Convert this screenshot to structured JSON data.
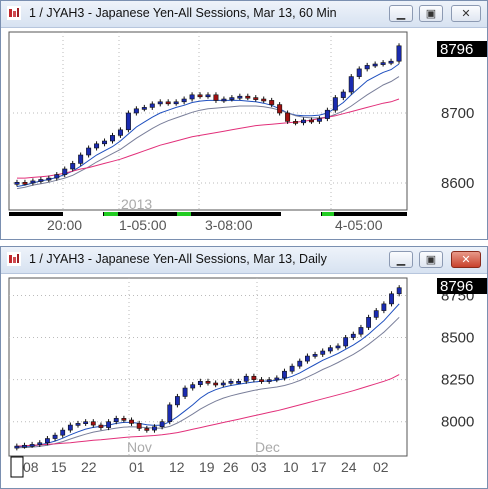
{
  "window1": {
    "title": "1 / JYAH3 - Japanese Yen-All Sessions, Mar 13, 60 Min",
    "price_tag": "8796",
    "y_labels": [
      "8700",
      "8600"
    ],
    "year_label": "2013",
    "x_labels": [
      "20:00",
      "1-05:00",
      "3-08:00",
      "4-05:00"
    ],
    "buttons": {
      "minimize": "minimize-icon",
      "restore": "restore-icon",
      "close": "close-icon"
    }
  },
  "window2": {
    "title": "1 / JYAH3 - Japanese Yen-All Sessions, Mar 13, Daily",
    "price_tag": "8796",
    "y_labels": [
      "8750",
      "8500",
      "8250",
      "8000"
    ],
    "month_labels": [
      "Nov",
      "Dec"
    ],
    "x_labels": [
      "08",
      "15",
      "22",
      "01",
      "12",
      "19",
      "26",
      "03",
      "10",
      "17",
      "24",
      "02"
    ]
  },
  "colors": {
    "up": "#1a2bb0",
    "down": "#a01010",
    "ma_fast": "#1e4fbf",
    "ma_mid": "#7a7f9a",
    "ma_slow": "#e2307a",
    "accent_green": "#22cc22"
  },
  "chart_data": [
    {
      "type": "candlestick",
      "title": "1 / JYAH3 - Japanese Yen-All Sessions, Mar 13, 60 Min",
      "ylim": [
        8570,
        8810
      ],
      "last_price": 8796,
      "close": [
        8601,
        8600,
        8603,
        8605,
        8607,
        8612,
        8620,
        8628,
        8640,
        8650,
        8656,
        8660,
        8668,
        8676,
        8700,
        8706,
        8708,
        8713,
        8716,
        8714,
        8716,
        8720,
        8726,
        8724,
        8726,
        8718,
        8720,
        8722,
        8724,
        8722,
        8720,
        8718,
        8712,
        8700,
        8688,
        8686,
        8690,
        8688,
        8692,
        8704,
        8722,
        8730,
        8752,
        8763,
        8768,
        8770,
        8772,
        8774,
        8796
      ],
      "series": [
        {
          "name": "fast-ma",
          "values": [
            8595,
            8597,
            8600,
            8603,
            8605,
            8608,
            8612,
            8617,
            8624,
            8632,
            8640,
            8646,
            8652,
            8660,
            8670,
            8680,
            8687,
            8694,
            8700,
            8704,
            8708,
            8711,
            8715,
            8717,
            8718,
            8718,
            8718,
            8718,
            8718,
            8717,
            8716,
            8714,
            8711,
            8706,
            8700,
            8697,
            8696,
            8696,
            8697,
            8700,
            8707,
            8715,
            8726,
            8736,
            8746,
            8752,
            8758,
            8762,
            8770
          ]
        },
        {
          "name": "mid-ma",
          "values": [
            8592,
            8594,
            8597,
            8599,
            8601,
            8604,
            8607,
            8611,
            8617,
            8623,
            8630,
            8636,
            8642,
            8648,
            8656,
            8664,
            8671,
            8678,
            8684,
            8689,
            8693,
            8697,
            8701,
            8704,
            8706,
            8707,
            8708,
            8709,
            8710,
            8710,
            8710,
            8709,
            8707,
            8704,
            8700,
            8696,
            8694,
            8693,
            8693,
            8694,
            8698,
            8703,
            8710,
            8718,
            8726,
            8733,
            8740,
            8745,
            8752
          ]
        },
        {
          "name": "slow-ma",
          "values": [
            8607,
            8607,
            8608,
            8609,
            8610,
            8612,
            8614,
            8617,
            8620,
            8622,
            8625,
            8628,
            8631,
            8634,
            8638,
            8642,
            8646,
            8650,
            8654,
            8657,
            8660,
            8663,
            8666,
            8668,
            8670,
            8672,
            8674,
            8676,
            8678,
            8680,
            8682,
            8683,
            8684,
            8685,
            8686,
            8687,
            8688,
            8690,
            8692,
            8694,
            8696,
            8699,
            8702,
            8705,
            8708,
            8711,
            8714,
            8716,
            8720
          ]
        }
      ]
    },
    {
      "type": "candlestick",
      "title": "1 / JYAH3 - Japanese Yen-All Sessions, Mar 13, Daily",
      "ylim": [
        7820,
        8830
      ],
      "last_price": 8796,
      "close": [
        7855,
        7860,
        7865,
        7875,
        7900,
        7920,
        7950,
        7980,
        7990,
        8000,
        7980,
        7965,
        8000,
        8020,
        8010,
        7990,
        7960,
        7950,
        7970,
        8000,
        8100,
        8150,
        8200,
        8220,
        8240,
        8230,
        8220,
        8230,
        8240,
        8240,
        8270,
        8250,
        8240,
        8250,
        8260,
        8300,
        8330,
        8360,
        8390,
        8400,
        8420,
        8440,
        8450,
        8500,
        8520,
        8560,
        8620,
        8660,
        8700,
        8760,
        8796
      ],
      "series": [
        {
          "name": "fast-ma",
          "values": [
            7850,
            7852,
            7856,
            7862,
            7872,
            7885,
            7902,
            7922,
            7940,
            7956,
            7966,
            7972,
            7980,
            7990,
            7996,
            7996,
            7990,
            7982,
            7978,
            7980,
            8000,
            8030,
            8065,
            8100,
            8140,
            8170,
            8190,
            8205,
            8215,
            8222,
            8230,
            8236,
            8240,
            8242,
            8246,
            8256,
            8270,
            8290,
            8315,
            8340,
            8365,
            8385,
            8405,
            8430,
            8455,
            8485,
            8520,
            8560,
            8600,
            8650,
            8700
          ]
        },
        {
          "name": "mid-ma",
          "values": [
            7845,
            7846,
            7849,
            7853,
            7860,
            7870,
            7882,
            7897,
            7912,
            7926,
            7938,
            7946,
            7954,
            7962,
            7968,
            7970,
            7968,
            7965,
            7962,
            7962,
            7972,
            7992,
            8018,
            8045,
            8075,
            8100,
            8122,
            8140,
            8154,
            8165,
            8176,
            8186,
            8194,
            8200,
            8206,
            8215,
            8228,
            8245,
            8265,
            8287,
            8310,
            8330,
            8352,
            8376,
            8400,
            8428,
            8460,
            8495,
            8532,
            8575,
            8620
          ]
        },
        {
          "name": "slow-ma",
          "values": [
            7855,
            7857,
            7860,
            7862,
            7865,
            7868,
            7872,
            7875,
            7880,
            7885,
            7890,
            7893,
            7897,
            7902,
            7906,
            7910,
            7912,
            7915,
            7918,
            7922,
            7928,
            7935,
            7945,
            7955,
            7965,
            7975,
            7985,
            7995,
            8005,
            8015,
            8025,
            8035,
            8045,
            8055,
            8065,
            8076,
            8088,
            8100,
            8112,
            8124,
            8136,
            8148,
            8160,
            8172,
            8184,
            8198,
            8212,
            8226,
            8240,
            8256,
            8280
          ]
        }
      ]
    }
  ]
}
